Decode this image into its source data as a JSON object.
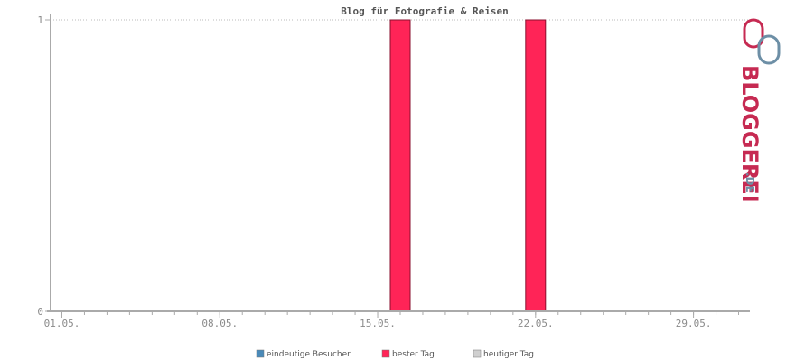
{
  "chart_data": {
    "type": "bar",
    "title": "Blog für Fotografie & Reisen",
    "xlabel": "",
    "ylabel": "",
    "x_ticks": [
      "01.05.",
      "08.05.",
      "15.05.",
      "22.05.",
      "29.05."
    ],
    "y_ticks": [
      "0",
      "1"
    ],
    "ylim": [
      0,
      1
    ],
    "days": 31,
    "grid": true,
    "legend_position": "bottom-center",
    "series": [
      {
        "name": "eindeutige Besucher",
        "color": "#4a8ab8",
        "values": [
          0,
          0,
          0,
          0,
          0,
          0,
          0,
          0,
          0,
          0,
          0,
          0,
          0,
          0,
          0,
          0,
          0,
          0,
          0,
          0,
          0,
          0,
          0,
          0,
          0,
          0,
          0,
          0,
          0,
          0,
          0
        ]
      },
      {
        "name": "bester Tag",
        "color": "#ff2457",
        "values": [
          0,
          0,
          0,
          0,
          0,
          0,
          0,
          0,
          0,
          0,
          0,
          0,
          0,
          0,
          0,
          1,
          0,
          0,
          0,
          0,
          0,
          1,
          0,
          0,
          0,
          0,
          0,
          0,
          0,
          0,
          0
        ]
      },
      {
        "name": "heutiger Tag",
        "color": "#d0d0d0",
        "values": [
          0,
          0,
          0,
          0,
          0,
          0,
          0,
          0,
          0,
          0,
          0,
          0,
          0,
          0,
          0,
          0,
          0,
          0,
          0,
          0,
          0,
          0,
          0,
          0,
          0,
          0,
          0,
          0,
          0,
          0,
          0
        ]
      }
    ]
  },
  "logo": {
    "text_main": "BLOGGEREI",
    "text_suffix": ".DE",
    "colors": {
      "primary": "#c62a52",
      "secondary": "#6d8fa6"
    }
  }
}
